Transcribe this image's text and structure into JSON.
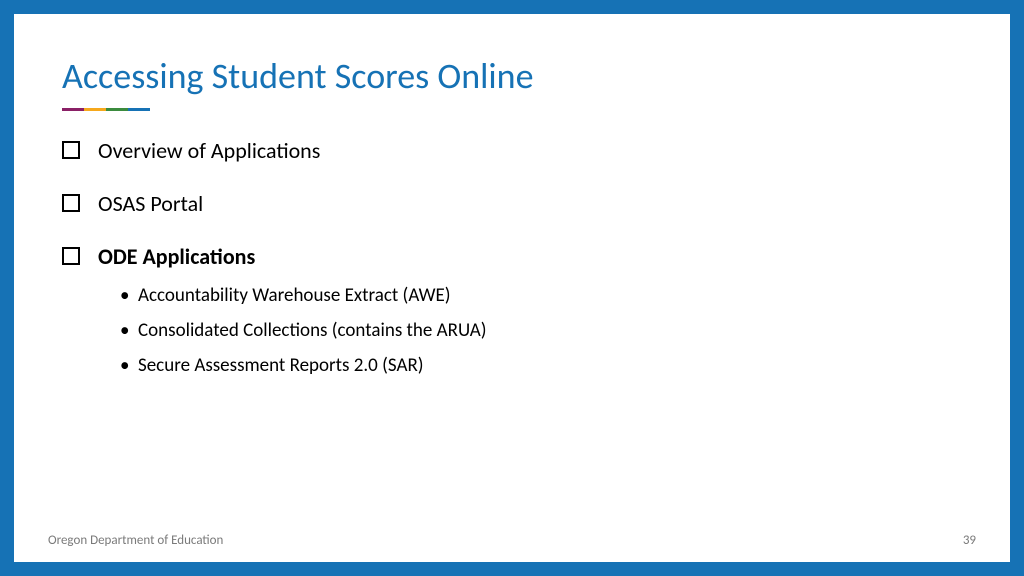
{
  "colors": {
    "frame_border": "#1672b5",
    "title_color": "#1672b5",
    "text_color": "#000000",
    "footer_color": "#7a7a7a",
    "underline": [
      "#8a2066",
      "#f6a81c",
      "#3b8b3e",
      "#1672b5"
    ]
  },
  "typography": {
    "title_fontsize": 36,
    "list_fontsize": 22,
    "sublist_fontsize": 19,
    "footer_fontsize": 13
  },
  "title": "Accessing Student Scores Online",
  "items": [
    {
      "label": "Overview of Applications",
      "bold": false
    },
    {
      "label": "OSAS Portal",
      "bold": false
    },
    {
      "label": "ODE Applications",
      "bold": true,
      "sub": [
        "Accountability Warehouse Extract (AWE)",
        "Consolidated Collections (contains the ARUA)",
        "Secure Assessment Reports 2.0 (SAR)"
      ]
    }
  ],
  "footer": {
    "org": "Oregon Department of Education",
    "page": "39"
  }
}
